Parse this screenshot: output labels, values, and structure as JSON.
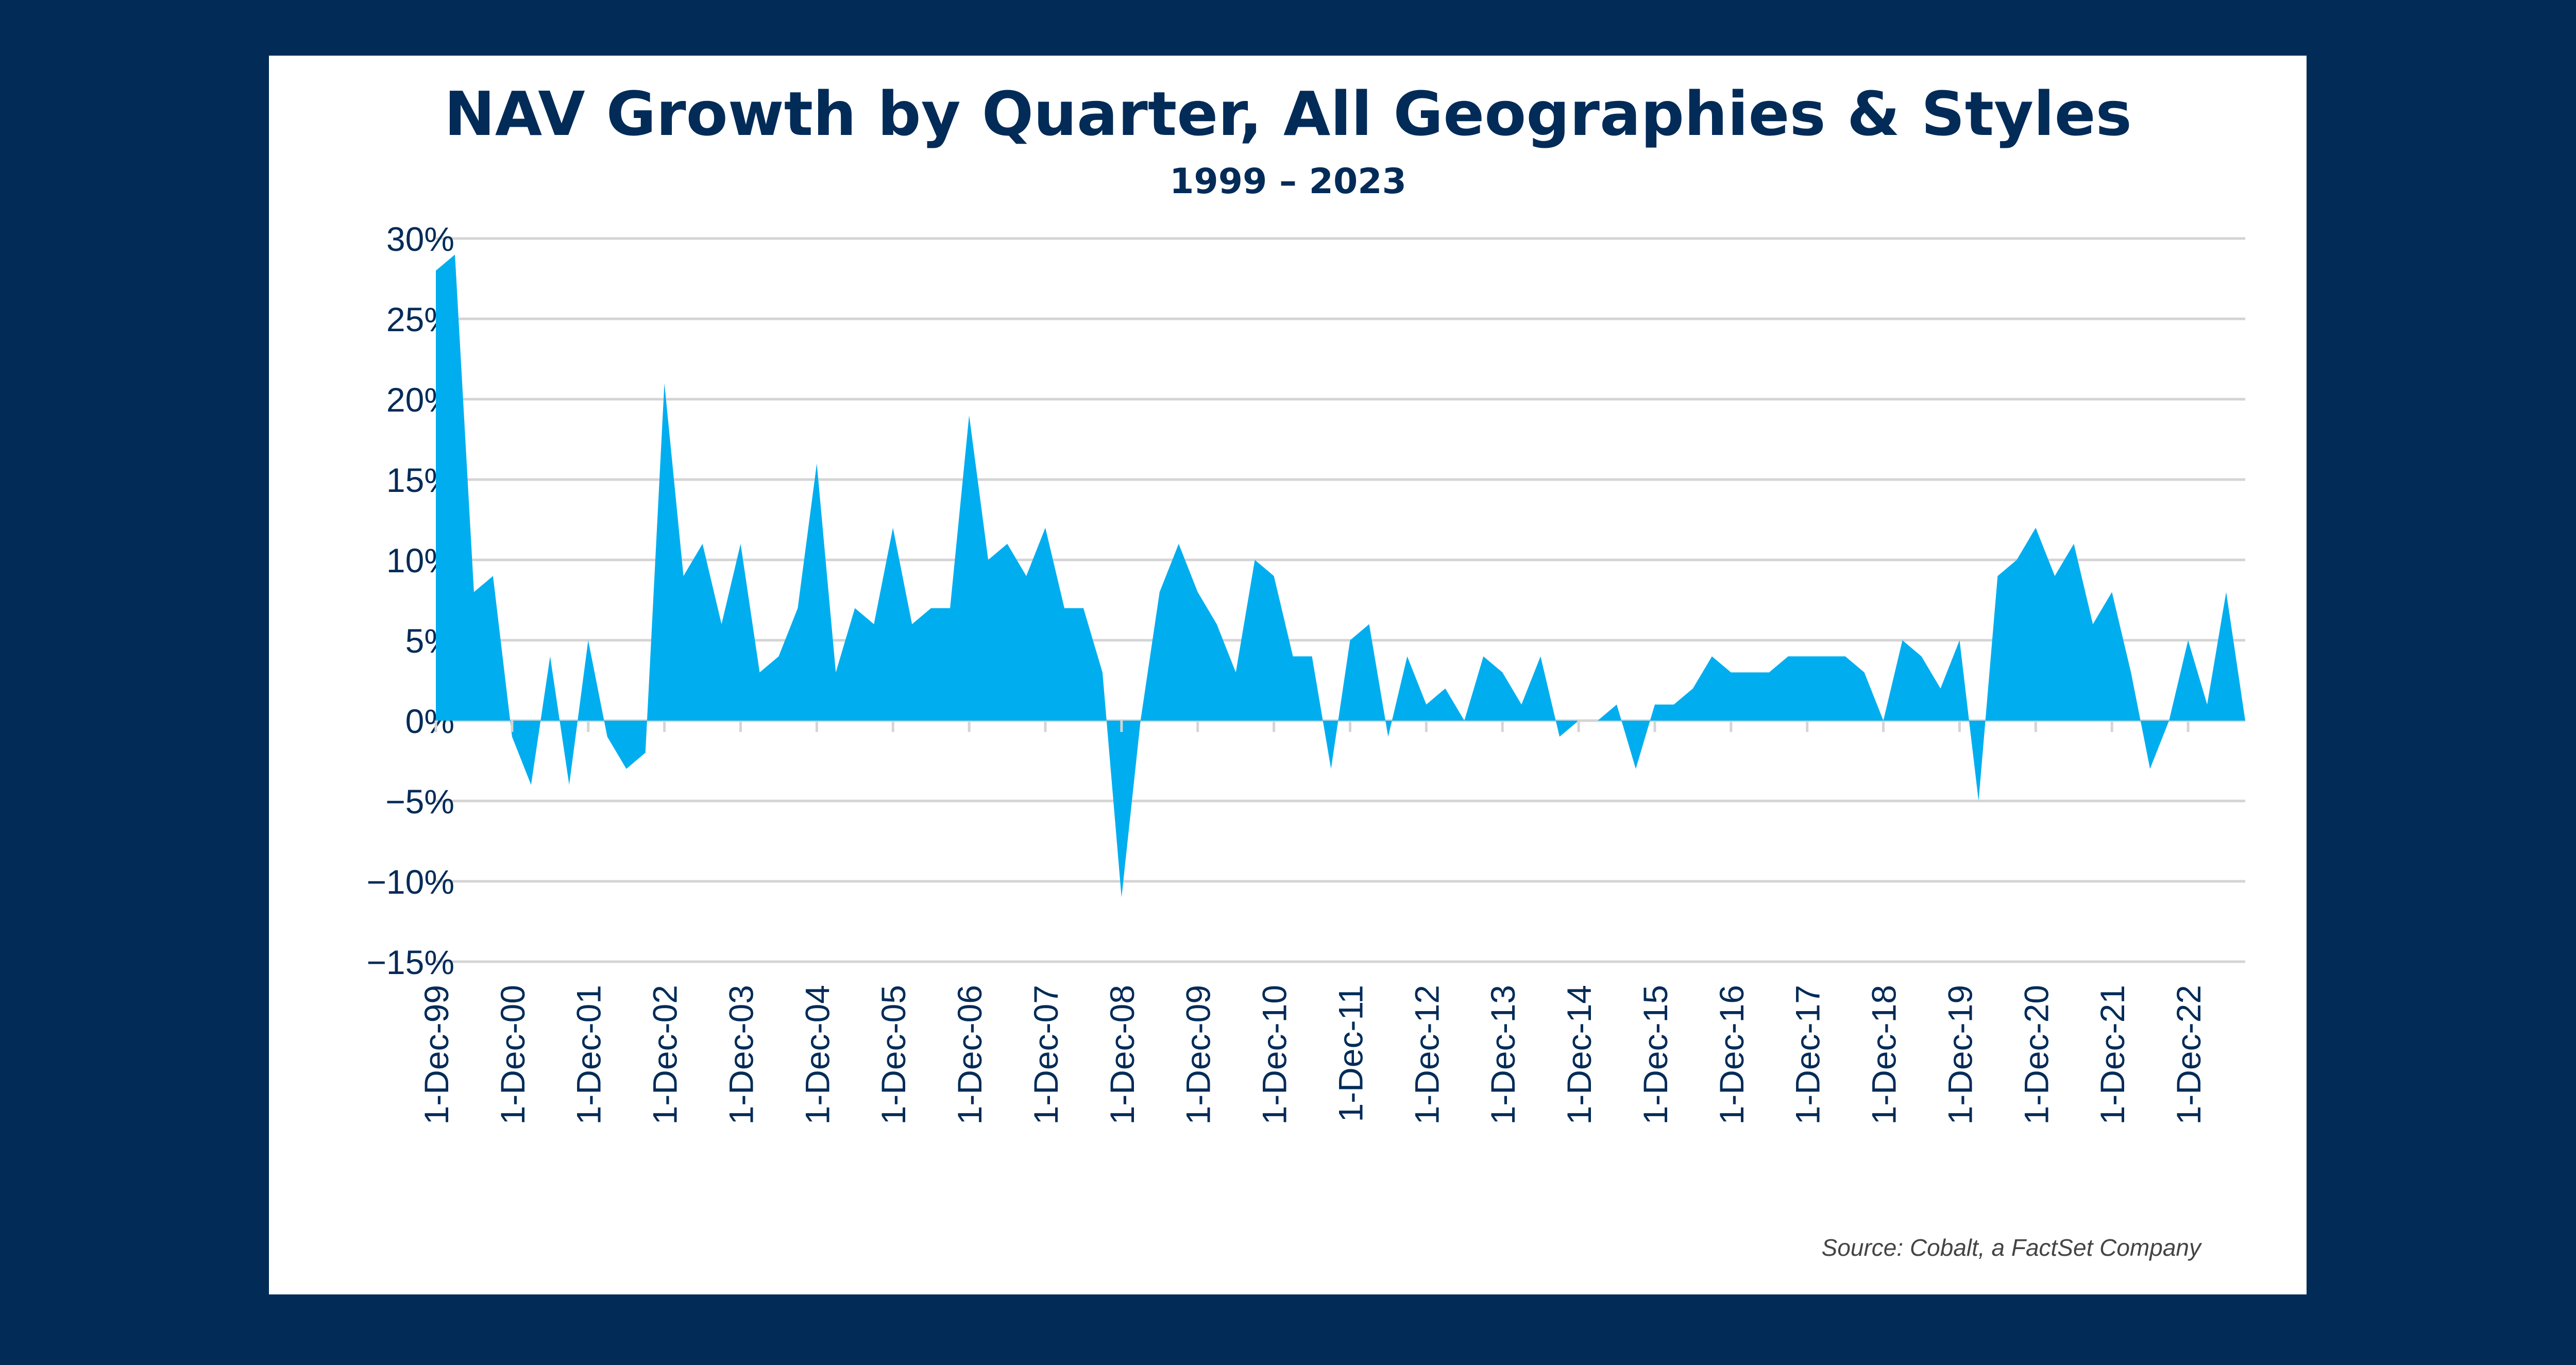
{
  "chart_data": {
    "type": "area",
    "title": "NAV Growth by Quarter, All Geographies & Styles",
    "subtitle": "1999 – 2023",
    "source": "Source: Cobalt, a FactSet Company",
    "ylim": [
      -15,
      30
    ],
    "y_ticks": [
      30,
      25,
      20,
      15,
      10,
      5,
      0,
      -5,
      -10,
      -15
    ],
    "y_tick_labels": [
      "30%",
      "25%",
      "20%",
      "15%",
      "10%",
      "5%",
      "0%",
      "−5%",
      "−10%",
      "−15%"
    ],
    "x_tick_labels": [
      "1-Dec-99",
      "1-Dec-00",
      "1-Dec-01",
      "1-Dec-02",
      "1-Dec-03",
      "1-Dec-04",
      "1-Dec-05",
      "1-Dec-06",
      "1-Dec-07",
      "1-Dec-08",
      "1-Dec-09",
      "1-Dec-10",
      "1-Dec-11",
      "1-Dec-12",
      "1-Dec-13",
      "1-Dec-14",
      "1-Dec-15",
      "1-Dec-16",
      "1-Dec-17",
      "1-Dec-18",
      "1-Dec-19",
      "1-Dec-20",
      "1-Dec-21",
      "1-Dec-22"
    ],
    "grid": true,
    "series": [
      {
        "color": "#00aeef",
        "values": [
          28,
          29,
          8,
          9,
          -1,
          -4,
          4,
          -4,
          5,
          -1,
          -3,
          -2,
          21,
          9,
          11,
          6,
          11,
          3,
          4,
          7,
          16,
          3,
          7,
          6,
          12,
          6,
          7,
          7,
          19,
          10,
          11,
          9,
          12,
          7,
          7,
          3,
          -11,
          0,
          8,
          11,
          8,
          6,
          3,
          10,
          9,
          4,
          4,
          -3,
          5,
          6,
          -1,
          4,
          1,
          2,
          0,
          4,
          3,
          1,
          4,
          -1,
          0,
          0,
          1,
          -3,
          1,
          1,
          2,
          4,
          3,
          3,
          3,
          4,
          4,
          4,
          4,
          3,
          0,
          5,
          4,
          2,
          5,
          -5,
          9,
          10,
          12,
          9,
          11,
          6,
          8,
          3,
          -3,
          0,
          5,
          1,
          8,
          0
        ]
      }
    ]
  }
}
